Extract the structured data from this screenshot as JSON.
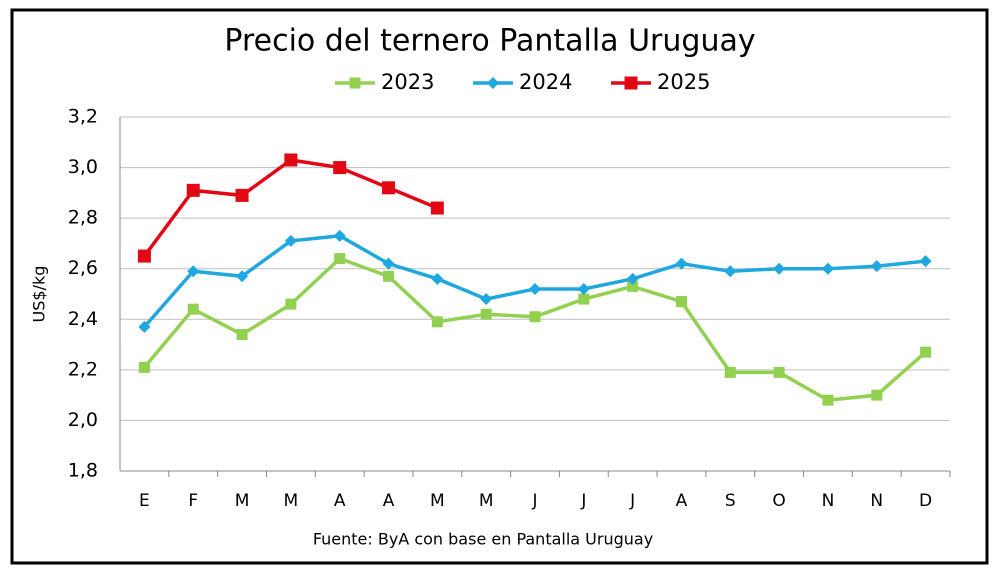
{
  "chart_data": {
    "type": "line",
    "title": "Precio del ternero Pantalla Uruguay",
    "y_label": "US$/kg",
    "source": "Fuente: ByA con base en Pantalla Uruguay",
    "categories": [
      "E",
      "F",
      "M",
      "M",
      "A",
      "A",
      "M",
      "M",
      "J",
      "J",
      "J",
      "A",
      "S",
      "O",
      "N",
      "N",
      "D"
    ],
    "series": [
      {
        "name": "2023",
        "color": "#92d050",
        "marker": "square",
        "values": [
          2.21,
          2.44,
          2.34,
          2.46,
          2.64,
          2.57,
          2.39,
          2.42,
          2.41,
          2.48,
          2.53,
          2.47,
          2.19,
          2.19,
          2.08,
          2.1,
          2.27
        ]
      },
      {
        "name": "2024",
        "color": "#1fa7e0",
        "marker": "diamond",
        "values": [
          2.37,
          2.59,
          2.57,
          2.71,
          2.73,
          2.62,
          2.56,
          2.48,
          2.52,
          2.52,
          2.56,
          2.62,
          2.59,
          2.6,
          2.6,
          2.61,
          2.63
        ]
      },
      {
        "name": "2025",
        "color": "#e30613",
        "marker": "square",
        "values": [
          2.65,
          2.91,
          2.89,
          3.03,
          3.0,
          2.92,
          2.84,
          null,
          null,
          null,
          null,
          null,
          null,
          null,
          null,
          null,
          null
        ]
      }
    ],
    "ylim": [
      1.8,
      3.2
    ],
    "yticks": [
      {
        "value": 1.8,
        "label": "1,8"
      },
      {
        "value": 2.0,
        "label": "2,0"
      },
      {
        "value": 2.2,
        "label": "2,2"
      },
      {
        "value": 2.4,
        "label": "2,4"
      },
      {
        "value": 2.6,
        "label": "2,6"
      },
      {
        "value": 2.8,
        "label": "2,8"
      },
      {
        "value": 3.0,
        "label": "3,0"
      },
      {
        "value": 3.2,
        "label": "3,2"
      }
    ],
    "grid": true,
    "legend": "top"
  }
}
